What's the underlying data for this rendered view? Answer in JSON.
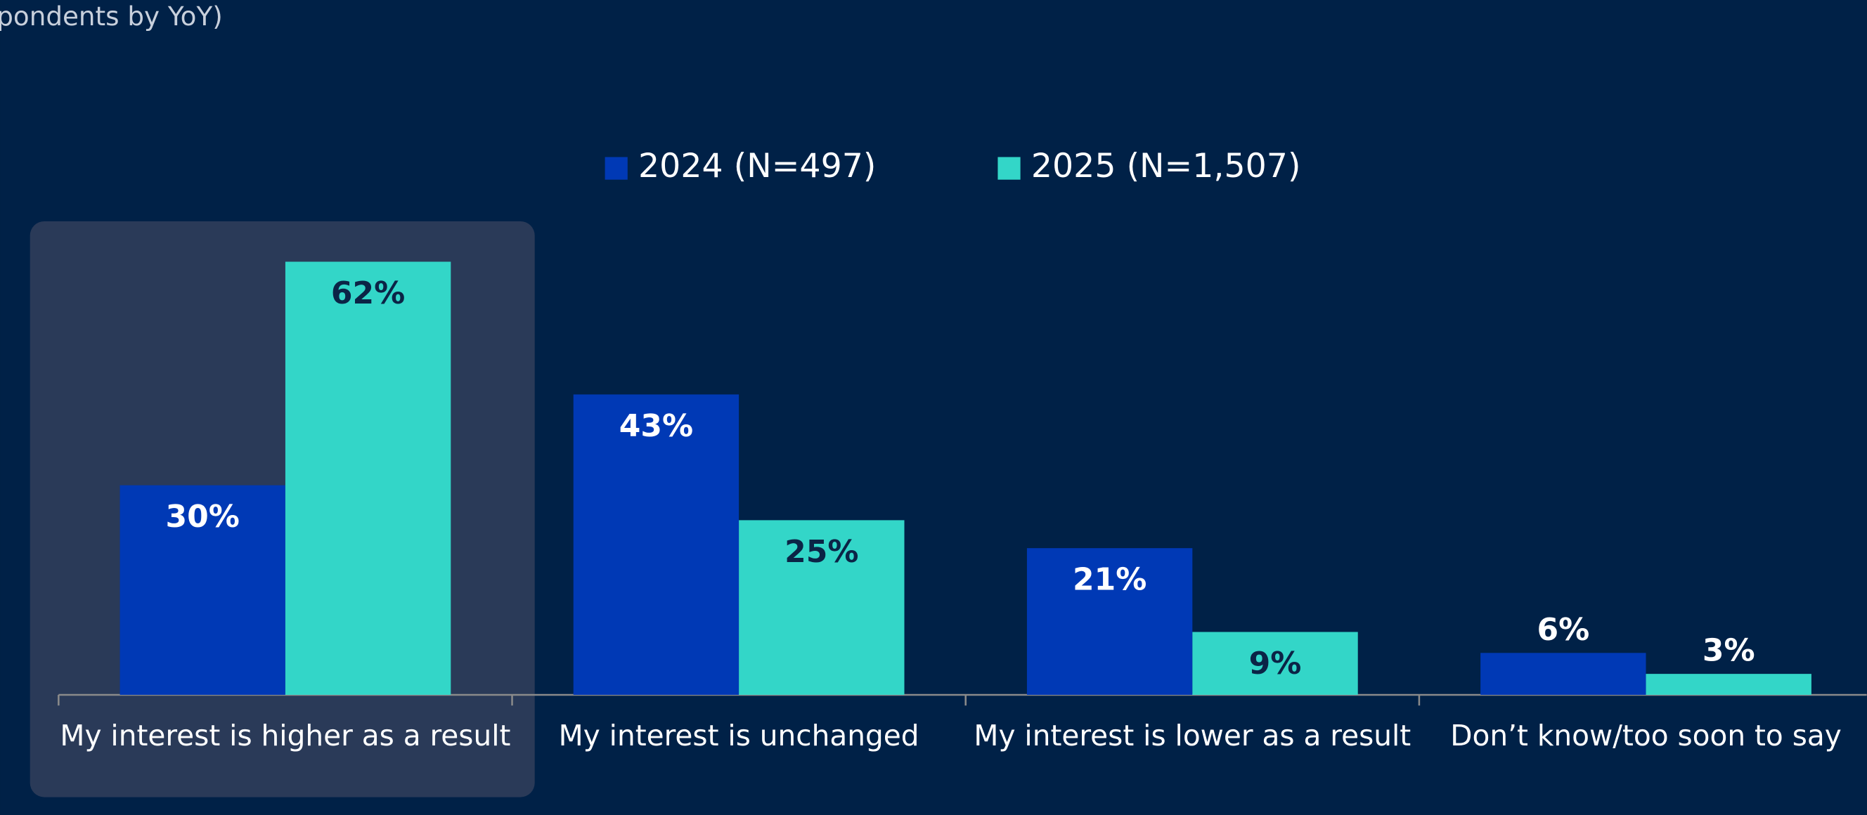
{
  "chart_data": {
    "type": "bar",
    "subtitle": "pondents by YoY)",
    "categories": [
      "My interest is higher as a result",
      "My interest is unchanged",
      "My interest is lower as a result",
      "Don’t know/too soon to say"
    ],
    "series": [
      {
        "name": "2024 (N=497)",
        "color": "#0039b5",
        "values": [
          30,
          43,
          21,
          6
        ],
        "value_labels": [
          "30%",
          "43%",
          "21%",
          "6%"
        ]
      },
      {
        "name": "2025 (N=1,507)",
        "color": "#33d6c8",
        "values": [
          62,
          25,
          9,
          3
        ],
        "value_labels": [
          "62%",
          "25%",
          "9%",
          "3%"
        ]
      }
    ],
    "ylim": [
      0,
      70
    ]
  }
}
